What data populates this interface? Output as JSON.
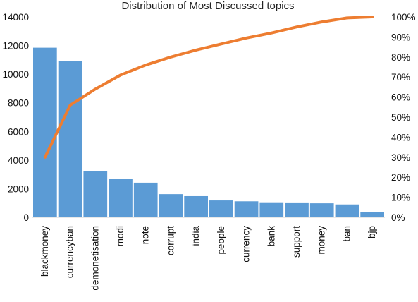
{
  "chart_data": {
    "type": "bar",
    "title": "Distribution of Most Discussed topics",
    "categories": [
      "blackmoney",
      "currencyban",
      "demonetisation",
      "modi",
      "note",
      "corrupt",
      "india",
      "people",
      "currency",
      "bank",
      "support",
      "money",
      "ban",
      "bjp"
    ],
    "series": [
      {
        "type": "bar",
        "axis": "left",
        "color": "#5b9bd5",
        "values": [
          11850,
          10900,
          3250,
          2700,
          2420,
          1620,
          1480,
          1180,
          1120,
          1050,
          1040,
          980,
          900,
          350
        ]
      },
      {
        "type": "line",
        "axis": "right",
        "color": "#ed7d31",
        "values": [
          0.3,
          0.56,
          0.64,
          0.71,
          0.76,
          0.8,
          0.835,
          0.865,
          0.895,
          0.92,
          0.95,
          0.975,
          0.995,
          1.0
        ]
      }
    ],
    "left_axis": {
      "ylim": [
        0,
        14000
      ],
      "ticks": [
        "0",
        "2000",
        "4000",
        "6000",
        "8000",
        "10000",
        "12000",
        "14000"
      ]
    },
    "right_axis": {
      "ylim": [
        0,
        1
      ],
      "ticks": [
        "0%",
        "10%",
        "20%",
        "30%",
        "40%",
        "50%",
        "60%",
        "70%",
        "80%",
        "90%",
        "100%"
      ]
    },
    "grid": false,
    "legend": "none"
  }
}
